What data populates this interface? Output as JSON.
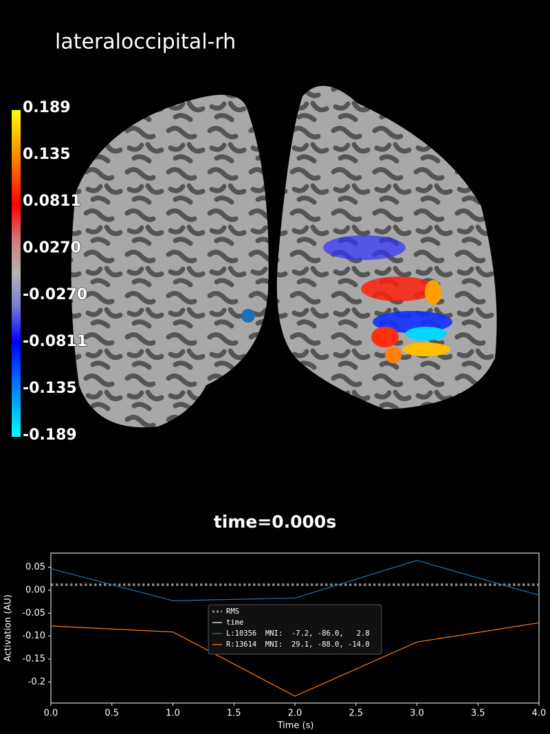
{
  "label": "lateraloccipital-rh",
  "colorbar": {
    "labels": [
      "0.189",
      "0.135",
      "0.0811",
      "0.0270",
      "-0.0270",
      "-0.0811",
      "-0.135",
      "-0.189"
    ]
  },
  "time_text": "time=0.000s",
  "chart_data": {
    "type": "line",
    "xlabel": "Time (s)",
    "ylabel": "Activation (AU)",
    "x": [
      0,
      1,
      2,
      3,
      4
    ],
    "series": [
      {
        "name": "RMS",
        "color": "#8c8c8c",
        "style": "dotted",
        "values": [
          0.012,
          0.012,
          0.012,
          0.012,
          0.012
        ]
      },
      {
        "name": "time",
        "color": "#ffffff",
        "style": "vline",
        "x_value": 0
      },
      {
        "name": "L:10356  MNI:  -7.2, -86.0,   2.8",
        "color": "#1f77b4",
        "style": "solid",
        "values": [
          0.047,
          -0.023,
          -0.017,
          0.065,
          -0.011
        ]
      },
      {
        "name": "R:13614  MNI:  29.1, -88.0, -14.0",
        "color": "#ff7f0e",
        "style": "solid",
        "values": [
          -0.078,
          -0.091,
          -0.231,
          -0.113,
          -0.071
        ]
      }
    ],
    "xlim": [
      0,
      4
    ],
    "xticks": [
      {
        "value": 0,
        "label": "0.0"
      },
      0.5,
      {
        "value": 1,
        "label": "1.0"
      },
      1.5,
      {
        "value": 2,
        "label": "2.0"
      },
      2.5,
      {
        "value": 3,
        "label": "3.0"
      },
      3.5,
      {
        "value": 4,
        "label": "4.0"
      }
    ],
    "ylim": [
      -0.246,
      0.081
    ],
    "yticks": [
      -0.2,
      -0.15,
      {
        "value": -0.1,
        "label": "-0.10"
      },
      -0.05,
      {
        "value": 0,
        "label": "0.00"
      },
      0.05
    ],
    "legend": "center"
  }
}
